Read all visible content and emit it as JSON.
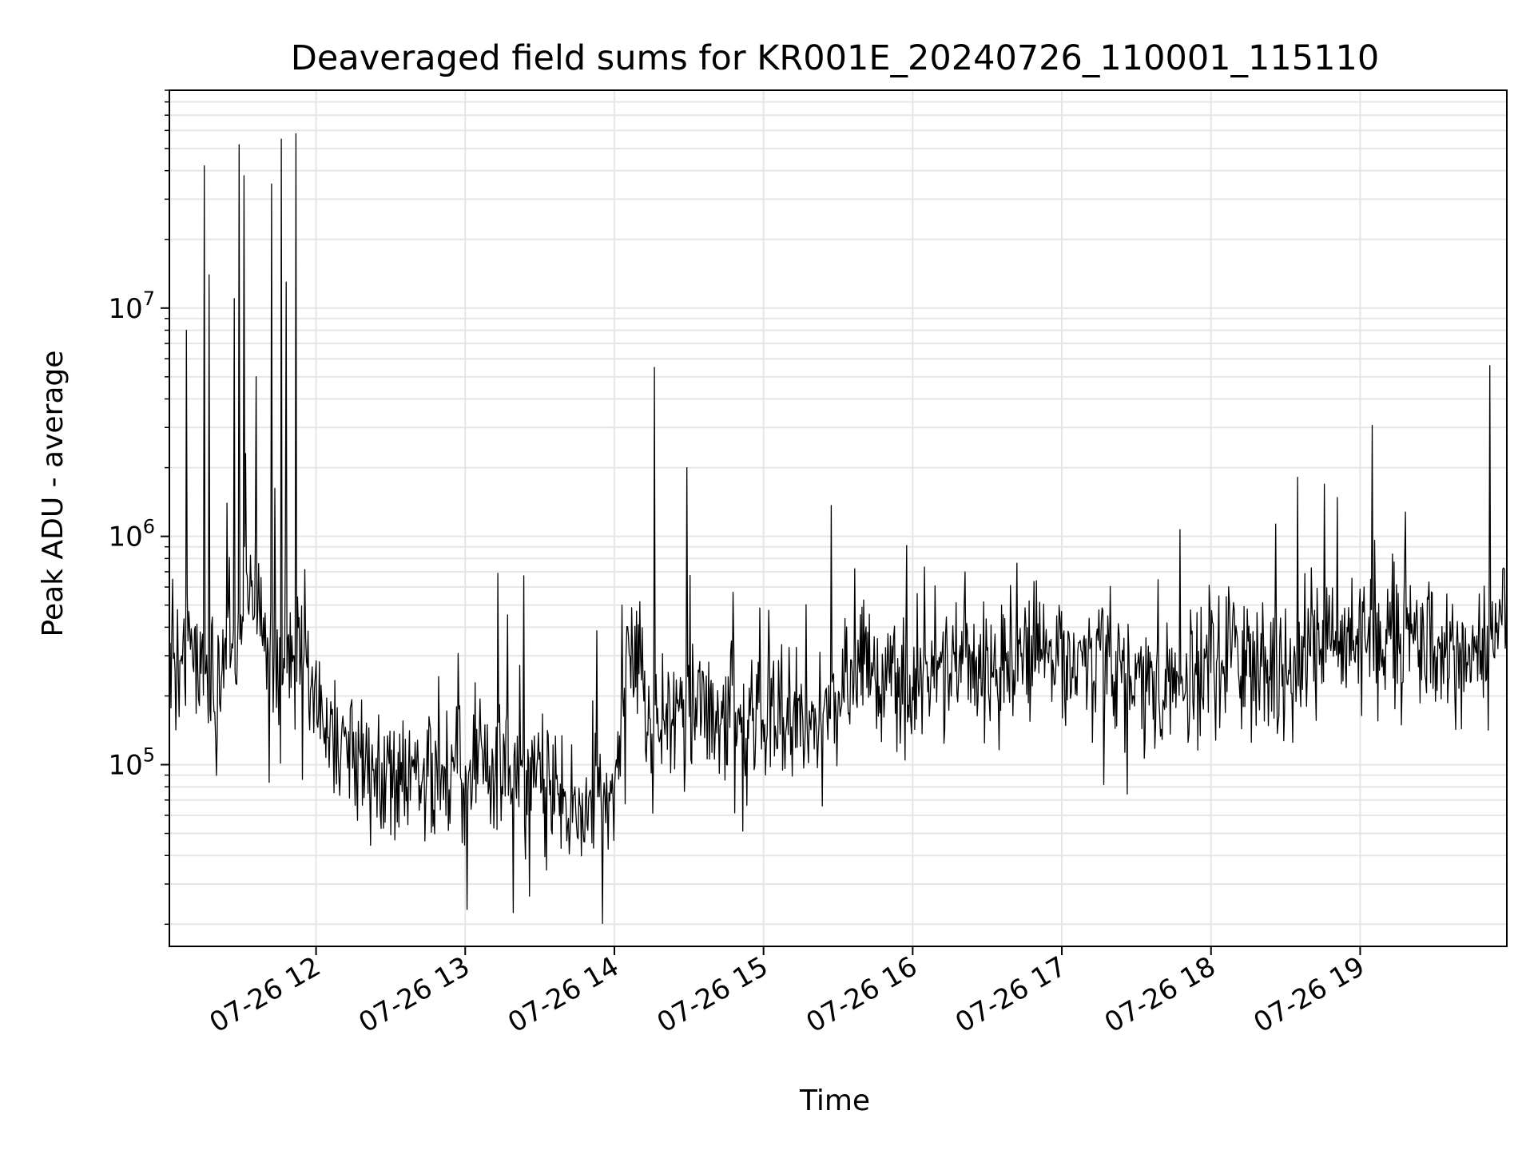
{
  "chart_data": {
    "type": "line",
    "title": "Deaveraged field sums for KR001E_20240726_110001_115110",
    "xlabel": "Time",
    "ylabel": "Peak ADU - average",
    "yscale": "log",
    "ylim": [
      16000,
      90000000
    ],
    "xlim": [
      "2024-07-26T11:01",
      "2024-07-26T19:59"
    ],
    "grid": true,
    "color": "#000000",
    "x_ticks": [
      {
        "value": "2024-07-26T12:00",
        "label": "07-26 12"
      },
      {
        "value": "2024-07-26T13:00",
        "label": "07-26 13"
      },
      {
        "value": "2024-07-26T14:00",
        "label": "07-26 14"
      },
      {
        "value": "2024-07-26T15:00",
        "label": "07-26 15"
      },
      {
        "value": "2024-07-26T16:00",
        "label": "07-26 16"
      },
      {
        "value": "2024-07-26T17:00",
        "label": "07-26 17"
      },
      {
        "value": "2024-07-26T18:00",
        "label": "07-26 18"
      },
      {
        "value": "2024-07-26T19:00",
        "label": "07-26 19"
      }
    ],
    "y_ticks": [
      {
        "value": 100000,
        "label_base": "10",
        "label_exp": "5"
      },
      {
        "value": 1000000,
        "label_base": "10",
        "label_exp": "6"
      },
      {
        "value": 10000000,
        "label_base": "10",
        "label_exp": "7"
      }
    ],
    "series": [
      {
        "x": [
          "2024-07-26T11:01",
          "2024-07-26T11:05",
          "2024-07-26T11:10",
          "2024-07-26T11:15",
          "2024-07-26T11:20",
          "2024-07-26T11:25",
          "2024-07-26T11:30",
          "2024-07-26T11:35",
          "2024-07-26T11:40",
          "2024-07-26T11:45",
          "2024-07-26T11:50",
          "2024-07-26T11:55",
          "2024-07-26T12:00",
          "2024-07-26T12:10",
          "2024-07-26T12:20",
          "2024-07-26T12:30",
          "2024-07-26T12:40",
          "2024-07-26T12:50",
          "2024-07-26T13:00",
          "2024-07-26T13:10",
          "2024-07-26T13:20",
          "2024-07-26T13:30",
          "2024-07-26T13:40",
          "2024-07-26T13:50",
          "2024-07-26T14:00",
          "2024-07-26T14:05",
          "2024-07-26T14:10",
          "2024-07-26T14:15",
          "2024-07-26T14:20",
          "2024-07-26T14:30",
          "2024-07-26T14:40",
          "2024-07-26T14:50",
          "2024-07-26T15:00",
          "2024-07-26T15:10",
          "2024-07-26T15:20",
          "2024-07-26T15:30",
          "2024-07-26T15:40",
          "2024-07-26T15:50",
          "2024-07-26T16:00",
          "2024-07-26T16:10",
          "2024-07-26T16:20",
          "2024-07-26T16:30",
          "2024-07-26T16:40",
          "2024-07-26T16:50",
          "2024-07-26T17:00",
          "2024-07-26T17:10",
          "2024-07-26T17:20",
          "2024-07-26T17:30",
          "2024-07-26T17:40",
          "2024-07-26T17:50",
          "2024-07-26T18:00",
          "2024-07-26T18:10",
          "2024-07-26T18:20",
          "2024-07-26T18:30",
          "2024-07-26T18:40",
          "2024-07-26T18:50",
          "2024-07-26T19:00",
          "2024-07-26T19:10",
          "2024-07-26T19:20",
          "2024-07-26T19:30",
          "2024-07-26T19:40",
          "2024-07-26T19:50",
          "2024-07-26T19:59"
        ],
        "y": [
          300000,
          280000,
          350000,
          250000,
          200000,
          300000,
          450000,
          700000,
          300000,
          220000,
          250000,
          350000,
          180000,
          120000,
          100000,
          80000,
          90000,
          85000,
          90000,
          95000,
          90000,
          80000,
          70000,
          65000,
          75000,
          300000,
          280000,
          150000,
          160000,
          180000,
          170000,
          160000,
          170000,
          160000,
          150000,
          180000,
          300000,
          250000,
          220000,
          250000,
          280000,
          260000,
          300000,
          320000,
          300000,
          280000,
          260000,
          240000,
          200000,
          220000,
          300000,
          330000,
          260000,
          280000,
          300000,
          320000,
          380000,
          350000,
          380000,
          330000,
          300000,
          340000,
          500000
        ]
      }
    ],
    "spikes": [
      {
        "x": "2024-07-26T11:08",
        "y": 8000000
      },
      {
        "x": "2024-07-26T11:15",
        "y": 42000000
      },
      {
        "x": "2024-07-26T11:17",
        "y": 14000000
      },
      {
        "x": "2024-07-26T11:27",
        "y": 11000000
      },
      {
        "x": "2024-07-26T11:29",
        "y": 52000000
      },
      {
        "x": "2024-07-26T11:31",
        "y": 38000000
      },
      {
        "x": "2024-07-26T11:36",
        "y": 5000000
      },
      {
        "x": "2024-07-26T11:42",
        "y": 35000000
      },
      {
        "x": "2024-07-26T11:46",
        "y": 55000000
      },
      {
        "x": "2024-07-26T11:48",
        "y": 13000000
      },
      {
        "x": "2024-07-26T11:52",
        "y": 58000000
      },
      {
        "x": "2024-07-26T14:16",
        "y": 5500000
      },
      {
        "x": "2024-07-26T14:29",
        "y": 2000000
      },
      {
        "x": "2024-07-26T19:52",
        "y": 5600000
      }
    ]
  }
}
